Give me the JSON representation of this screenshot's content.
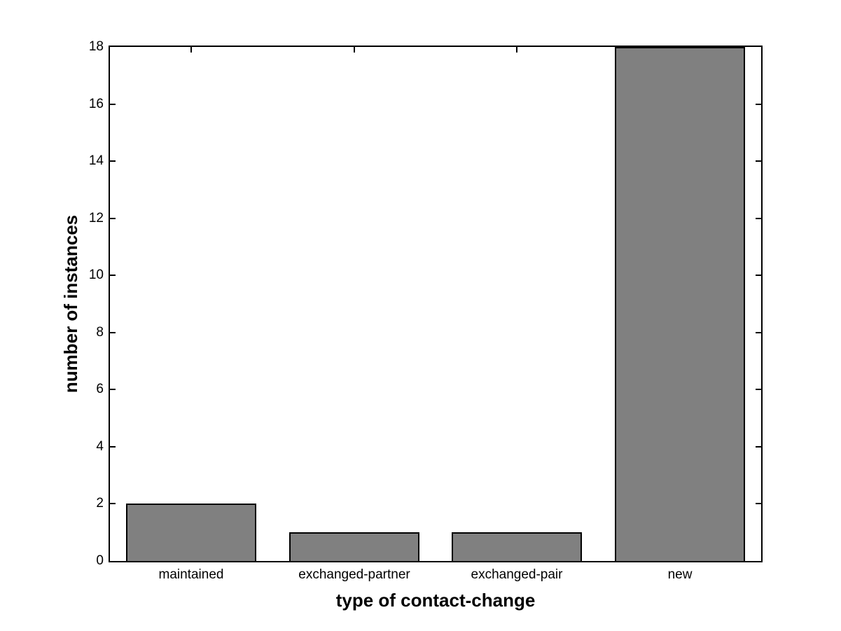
{
  "figure": {
    "background": "#ffffff"
  },
  "chart_data": {
    "type": "bar",
    "categories": [
      "maintained",
      "exchanged-partner",
      "exchanged-pair",
      "new"
    ],
    "values": [
      2,
      1,
      1,
      18
    ],
    "title": "",
    "xlabel": "type of contact-change",
    "ylabel": "number of instances",
    "ylim": [
      0,
      18
    ],
    "yticks": [
      0,
      2,
      4,
      6,
      8,
      10,
      12,
      14,
      16,
      18
    ],
    "bar_width_fraction": 0.8,
    "bar_fill": "#808080",
    "bar_edge": "#000000",
    "axis_color": "#000000",
    "grid": false,
    "legend": null,
    "tick_direction": "in"
  }
}
